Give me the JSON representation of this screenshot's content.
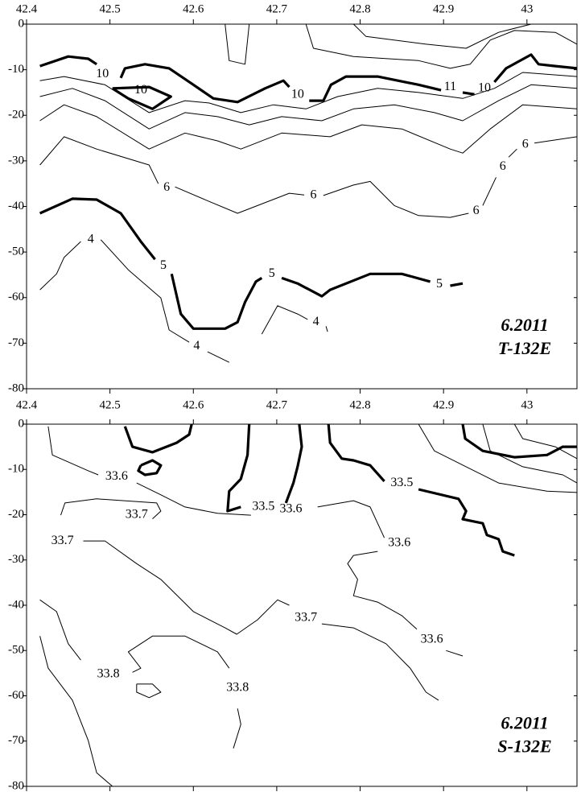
{
  "chart_data": [
    {
      "type": "contour",
      "title": "6.2011",
      "subtitle": "T-132E",
      "xlim": [
        42.4,
        43.06
      ],
      "ylim": [
        -80,
        0
      ],
      "xticks": [
        42.4,
        42.5,
        42.6,
        42.7,
        42.8,
        42.9,
        43
      ],
      "yticks": [
        -80,
        -70,
        -60,
        -50,
        -40,
        -30,
        -20,
        -10,
        0
      ],
      "color": "#000000",
      "contours": [
        {
          "bold": true,
          "x": [
            42.416,
            42.45,
            42.474,
            42.484,
            null,
            42.513,
            42.518,
            42.542,
            42.571,
            42.6,
            42.624,
            42.653,
            42.686,
            42.708,
            42.715,
            null,
            42.739,
            42.756,
            42.765,
            42.783,
            42.821,
            42.87,
            42.897,
            null,
            42.923,
            42.937,
            null,
            42.961,
            42.975,
            43.005,
            43.014,
            43.034,
            43.06
          ],
          "y": [
            -9.2,
            -7.1,
            -7.6,
            -8.8,
            null,
            -11.8,
            -9.7,
            -8.8,
            -9.7,
            -13.3,
            -16.3,
            -17.1,
            -14.1,
            -12.4,
            -13.8,
            null,
            -16.8,
            -16.8,
            -13.3,
            -11.5,
            -11.5,
            -13.3,
            -14.5,
            null,
            -15,
            -15.4,
            null,
            -12.7,
            -9.7,
            -6.7,
            -8.8,
            -9.2,
            -9.7
          ]
        },
        {
          "bold": true,
          "x": [
            42.503,
            42.522,
            42.551,
            42.573,
            42.547,
            42.503
          ],
          "y": [
            -14.1,
            -16.3,
            -18.6,
            -15.9,
            -13.8,
            -14.1
          ]
        },
        {
          "bold": false,
          "x": [
            42.416,
            42.445,
            42.494,
            42.547,
            42.59,
            42.619,
            42.657,
            42.696,
            42.735,
            42.773,
            42.821,
            42.87,
            42.923,
            42.961,
            42.995,
            43.06
          ],
          "y": [
            -12.4,
            -11.5,
            -13.3,
            -19.4,
            -16.8,
            -17.3,
            -19.4,
            -17.7,
            -18.6,
            -15.9,
            -14.1,
            -15,
            -16.3,
            -14.1,
            -10.6,
            -11.5
          ]
        },
        {
          "bold": false,
          "x": [
            42.416,
            42.455,
            42.494,
            42.547,
            42.59,
            42.629,
            42.667,
            42.706,
            42.754,
            42.792,
            42.841,
            42.889,
            42.923,
            42.966,
            43.005,
            43.06
          ],
          "y": [
            -15.9,
            -14.1,
            -16.8,
            -23,
            -19.4,
            -20.3,
            -22.1,
            -20.3,
            -21.2,
            -18.6,
            -17.7,
            -19.4,
            -21.2,
            -16.8,
            -13.3,
            -14.1
          ]
        },
        {
          "bold": false,
          "x": [
            42.416,
            42.445,
            42.484,
            42.547,
            42.59,
            42.629,
            42.657,
            42.706,
            42.764,
            42.802,
            42.85,
            42.908,
            42.923,
            42.956,
            42.995,
            43.06
          ],
          "y": [
            -21.2,
            -17.7,
            -20.3,
            -27.4,
            -23.9,
            -25.6,
            -27.4,
            -23.9,
            -24.7,
            -22.1,
            -23,
            -27.4,
            -28.3,
            -23,
            -17.7,
            -18.6
          ]
        },
        {
          "bold": false,
          "x": [
            42.416,
            42.445,
            42.484,
            42.547,
            42.558,
            null,
            42.578,
            42.619,
            42.653,
            42.677,
            42.715,
            42.733,
            null,
            42.756,
            42.792,
            42.812,
            42.841,
            42.87,
            42.908,
            42.93,
            null,
            42.947,
            42.963,
            null,
            42.978,
            42.988,
            null,
            43.009,
            43.06
          ],
          "y": [
            -30.9,
            -24.7,
            -27.4,
            -30.9,
            -35,
            null,
            -35.7,
            -38.9,
            -41.5,
            -39.8,
            -37.1,
            -37.5,
            null,
            -37.6,
            -35.3,
            -34.5,
            -39.8,
            -42,
            -42.4,
            -41.5,
            null,
            -39.8,
            -33.6,
            null,
            -29.2,
            -27.4,
            null,
            -26.1,
            -24.7
          ]
        },
        {
          "bold": false,
          "x": [
            42.735,
            42.744,
            42.792,
            42.87,
            42.908,
            42.932,
            42.956,
            42.985,
            43.034,
            43.06
          ],
          "y": [
            0,
            -5.3,
            -7.1,
            -8,
            -9.7,
            -8.8,
            -3.5,
            -1.4,
            -1.8,
            -4.4
          ]
        },
        {
          "bold": false,
          "x": [
            42.792,
            42.807,
            42.879,
            42.927,
            42.966,
            43.005
          ],
          "y": [
            0,
            -2.7,
            -4.4,
            -5.3,
            -1.8,
            0
          ]
        },
        {
          "bold": false,
          "x": [
            42.638,
            42.643,
            42.662,
            42.667
          ],
          "y": [
            0,
            -8,
            -8.8,
            0
          ]
        },
        {
          "bold": true,
          "x": [
            42.416,
            42.455,
            42.484,
            42.513,
            42.537,
            42.554,
            null,
            42.574,
            42.585,
            42.6,
            42.638,
            42.653,
            42.662,
            42.675,
            42.682,
            null,
            42.706,
            42.725,
            42.754,
            42.764,
            42.812,
            42.85,
            42.884,
            null,
            42.908,
            42.923
          ],
          "y": [
            -41.5,
            -38.3,
            -38.5,
            -41.5,
            -47.7,
            -51.6,
            null,
            -54.8,
            -63.6,
            -66.8,
            -66.8,
            -65.4,
            -61,
            -56.5,
            -55.7,
            null,
            -55.7,
            -56.9,
            -59.7,
            -58.3,
            -54.8,
            -54.8,
            -56.5,
            null,
            -57.4,
            -56.9
          ]
        },
        {
          "bold": false,
          "x": [
            42.416,
            42.436,
            42.445,
            42.465,
            null,
            42.489,
            42.522,
            42.561,
            42.571,
            42.595,
            null,
            42.617,
            42.643
          ],
          "y": [
            -58.3,
            -54.8,
            -51.2,
            -47.7,
            null,
            -47.3,
            -53.9,
            -60.1,
            -67.1,
            -69.8,
            null,
            -71.9,
            -74.2
          ]
        },
        {
          "bold": false,
          "x": [
            42.682,
            42.701,
            42.725,
            42.737,
            null,
            42.759,
            42.761
          ],
          "y": [
            -68,
            -61.8,
            -63.6,
            -64.8,
            null,
            -66.3,
            -67.5
          ]
        }
      ],
      "contour_labels": [
        {
          "value": 10,
          "x": 42.491,
          "y": -11
        },
        {
          "value": 10,
          "x": 42.537,
          "y": -14.5
        },
        {
          "value": 10,
          "x": 42.725,
          "y": -15.5
        },
        {
          "value": 11,
          "x": 42.908,
          "y": -13.8
        },
        {
          "value": 10,
          "x": 42.949,
          "y": -14.1
        },
        {
          "value": 6,
          "x": 42.568,
          "y": -35.9
        },
        {
          "value": 6,
          "x": 42.744,
          "y": -37.6
        },
        {
          "value": 6,
          "x": 42.939,
          "y": -41
        },
        {
          "value": 6,
          "x": 42.971,
          "y": -31.3
        },
        {
          "value": 6,
          "x": 42.998,
          "y": -26.5
        },
        {
          "value": 5,
          "x": 42.564,
          "y": -53
        },
        {
          "value": 5,
          "x": 42.694,
          "y": -54.8
        },
        {
          "value": 5,
          "x": 42.895,
          "y": -57.1
        },
        {
          "value": 4,
          "x": 42.477,
          "y": -47.3
        },
        {
          "value": 4,
          "x": 42.604,
          "y": -70.7
        },
        {
          "value": 4,
          "x": 42.747,
          "y": -65.4
        }
      ]
    },
    {
      "type": "contour",
      "title": "6.2011",
      "subtitle": "S-132E",
      "xlim": [
        42.4,
        43.06
      ],
      "ylim": [
        -80,
        0
      ],
      "xticks": [
        42.4,
        42.5,
        42.6,
        42.7,
        42.8,
        42.9,
        43
      ],
      "yticks": [
        -80,
        -70,
        -60,
        -50,
        -40,
        -30,
        -20,
        -10,
        0
      ],
      "color": "#000000",
      "contours": [
        {
          "bold": true,
          "x": [
            42.518,
            42.527,
            42.551,
            42.58,
            42.595,
            42.598
          ],
          "y": [
            -0.5,
            -5,
            -6.2,
            -4.1,
            -2.3,
            0
          ]
        },
        {
          "bold": true,
          "x": [
            42.537,
            42.551,
            42.561,
            42.556,
            42.542,
            42.534,
            42.537
          ],
          "y": [
            -9.1,
            -8,
            -9.1,
            -10.8,
            -11.2,
            -10.3,
            -9.1
          ]
        },
        {
          "bold": true,
          "x": [
            42.667,
            42.665,
            42.657,
            42.643,
            42.641,
            42.657,
            null,
            42.711,
            42.72,
            42.725,
            42.73,
            42.727
          ],
          "y": [
            0,
            -6.8,
            -12.1,
            -14.8,
            -19.2,
            -18.3,
            null,
            -17.4,
            -13,
            -9.4,
            -5,
            0
          ]
        },
        {
          "bold": true,
          "x": [
            42.762,
            42.764,
            42.778,
            42.792,
            42.812,
            42.829,
            null,
            42.87,
            42.918,
            42.927,
            42.923,
            42.947,
            42.952,
            42.966,
            42.971,
            42.985
          ],
          "y": [
            0,
            -4.1,
            -7.6,
            -8,
            -9.1,
            -12.6,
            null,
            -14.4,
            -16.5,
            -19.2,
            -21,
            -21.9,
            -24.5,
            -25.4,
            -28.1,
            -29
          ]
        },
        {
          "bold": true,
          "x": [
            42.923,
            42.926,
            42.947,
            42.985,
            43.024,
            43.043,
            43.06
          ],
          "y": [
            0,
            -3.2,
            -5.9,
            -7.3,
            -6.8,
            -5,
            -5
          ]
        },
        {
          "bold": false,
          "x": [
            42.426,
            42.431,
            42.474,
            42.486,
            null,
            42.532,
            42.561,
            42.59,
            42.629,
            42.669,
            null,
            42.749,
            42.792,
            42.812,
            42.821,
            42.829
          ],
          "y": [
            -0.5,
            -6.8,
            -10.3,
            -11.2,
            null,
            -13,
            -15.6,
            -18.3,
            -19.7,
            -20.1,
            null,
            -18.3,
            -16.9,
            -18.3,
            -21.9,
            -25.1
          ]
        },
        {
          "bold": false,
          "x": [
            42.821,
            42.792,
            42.785,
            42.797,
            42.792,
            42.821,
            42.85,
            42.868,
            null,
            42.903,
            42.923
          ],
          "y": [
            -28.1,
            -29,
            -30.8,
            -34.3,
            -37.9,
            -39.3,
            -42.3,
            -45.3,
            null,
            -50,
            -51.2
          ]
        },
        {
          "bold": false,
          "x": [
            42.441,
            42.446,
            42.484,
            42.556,
            42.561,
            42.551
          ],
          "y": [
            -20.1,
            -17.4,
            -16.5,
            -17.4,
            -19.2,
            -20.9
          ]
        },
        {
          "bold": false,
          "x": [
            42.468,
            42.494,
            42.532,
            42.561,
            42.6,
            42.638,
            42.652,
            42.677,
            42.701,
            42.715,
            null,
            42.754,
            42.792,
            42.831,
            42.86,
            42.879,
            42.894
          ],
          "y": [
            -25.8,
            -25.8,
            -30.8,
            -34.3,
            -41.4,
            -45,
            -46.4,
            -43.2,
            -38.8,
            -40,
            null,
            -44.1,
            -45,
            -48.5,
            -53.9,
            -59.2,
            -61
          ]
        },
        {
          "bold": false,
          "x": [
            42.416,
            42.436,
            42.45,
            42.465,
            null,
            42.527,
            42.537,
            42.522,
            42.551,
            42.59,
            42.629,
            42.643,
            null,
            42.653,
            42.657,
            42.648
          ],
          "y": [
            -38.8,
            -41.4,
            -48.5,
            -52.1,
            null,
            -54.8,
            -53.9,
            -50.3,
            -46.8,
            -46.8,
            -50.3,
            -53.9,
            null,
            -62.8,
            -66.3,
            -71.6
          ]
        },
        {
          "bold": false,
          "x": [
            42.416,
            42.426,
            42.455,
            42.474,
            42.484,
            42.503
          ],
          "y": [
            -46.8,
            -53.9,
            -61,
            -69.9,
            -77,
            -80
          ]
        },
        {
          "bold": false,
          "x": [
            42.532,
            42.551,
            42.561,
            42.547,
            42.532,
            42.532
          ],
          "y": [
            -57.4,
            -57.4,
            -59.2,
            -60.4,
            -59.2,
            -57.4
          ]
        },
        {
          "bold": false,
          "x": [
            42.947,
            42.956,
            42.995,
            43.043,
            43.06
          ],
          "y": [
            0,
            -5.9,
            -9.4,
            -11.2,
            -13
          ]
        },
        {
          "bold": false,
          "x": [
            42.985,
            42.995,
            43.034,
            43.06
          ],
          "y": [
            0,
            -3.2,
            -5,
            -7.6
          ]
        },
        {
          "bold": false,
          "x": [
            42.87,
            42.889,
            42.927,
            42.966,
            43.024,
            43.06
          ],
          "y": [
            0,
            -5.9,
            -9.4,
            -13,
            -14.8,
            -15.1
          ]
        }
      ],
      "contour_labels": [
        {
          "value": 33.6,
          "x": 42.508,
          "y": -11.6
        },
        {
          "value": 33.7,
          "x": 42.532,
          "y": -20.1
        },
        {
          "value": 33.5,
          "x": 42.684,
          "y": -18.3
        },
        {
          "value": 33.6,
          "x": 42.717,
          "y": -18.8
        },
        {
          "value": 33.5,
          "x": 42.85,
          "y": -13
        },
        {
          "value": 33.7,
          "x": 42.443,
          "y": -25.8
        },
        {
          "value": 33.6,
          "x": 42.847,
          "y": -26.3
        },
        {
          "value": 33.7,
          "x": 42.735,
          "y": -42.8
        },
        {
          "value": 33.6,
          "x": 42.886,
          "y": -47.6
        },
        {
          "value": 33.8,
          "x": 42.498,
          "y": -55.3
        },
        {
          "value": 33.8,
          "x": 42.653,
          "y": -58.3
        }
      ]
    }
  ]
}
